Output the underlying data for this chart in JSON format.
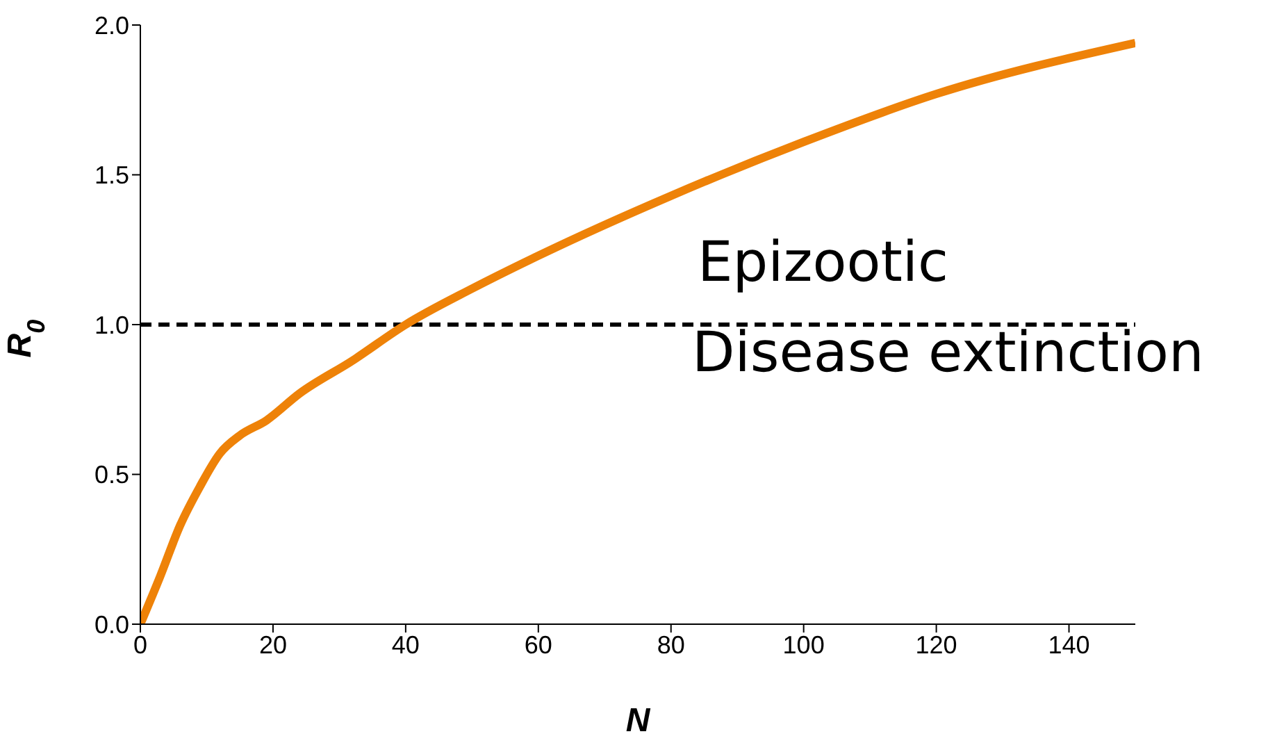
{
  "chart_data": {
    "type": "line",
    "xlabel": "N",
    "ylabel": "R$_{0}$",
    "x": [
      0,
      3,
      6,
      9,
      12,
      15,
      19,
      24,
      32,
      40,
      50,
      60,
      80,
      100,
      120,
      150
    ],
    "series": [
      {
        "color": "#ee8208",
        "values": [
          0,
          0.16,
          0.33,
          0.46,
          0.57,
          0.63,
          0.68,
          0.77,
          0.88,
          1.0,
          1.12,
          1.23,
          1.43,
          1.61,
          1.77,
          1.94
        ]
      }
    ],
    "xlim": [
      0,
      150
    ],
    "xticks": [
      0,
      20,
      40,
      60,
      80,
      100,
      120,
      140
    ],
    "ylim": [
      0,
      2
    ],
    "yticks": [
      {
        "value": 0,
        "label": "0.0"
      },
      {
        "value": 0.5,
        "label": "0.5"
      },
      {
        "value": 1,
        "label": "1.0"
      },
      {
        "value": 1.5,
        "label": "1.5"
      },
      {
        "value": 2,
        "label": "2.0"
      }
    ],
    "ref_lines": [
      {
        "axis": "y",
        "value": 1,
        "color": "#000000",
        "line_style": "dashed"
      }
    ],
    "annotations": [
      "Epizootic",
      "Disease extinction"
    ],
    "grid": false,
    "legend": false,
    "marker": "none",
    "line_style": "solid"
  }
}
